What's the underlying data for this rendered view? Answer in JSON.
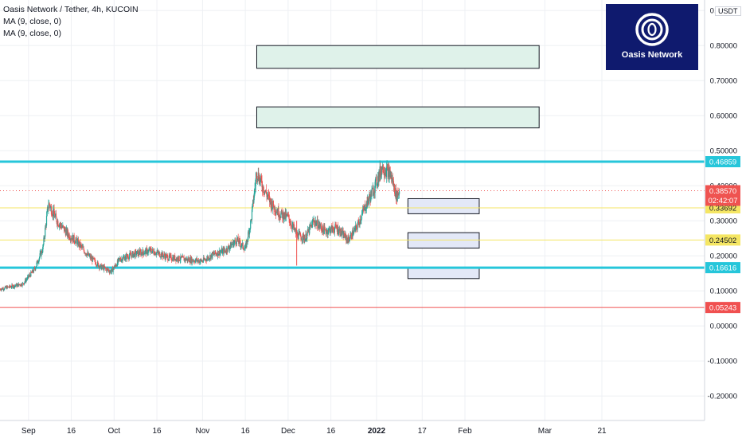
{
  "legend": {
    "title": "Oasis Network / Tether, 4h, KUCOIN",
    "ma1": "MA (9, close, 0)",
    "ma2": "MA (9, close, 0)"
  },
  "logo": {
    "text": "Oasis Network"
  },
  "currency": "USDT",
  "colors": {
    "up": "#26a69a",
    "down": "#ef5350",
    "support_blue": "#26c6da",
    "yellow_level": "#f5e663",
    "red_level": "#f05050",
    "target_box": "#dff2ea",
    "entry_box": "#e3e8f7",
    "logo_bg": "#0f1a6e"
  },
  "chart_data": {
    "type": "candlestick",
    "symbol": "Oasis Network / Tether",
    "interval": "4h",
    "exchange": "KUCOIN",
    "ylim": [
      -0.27,
      0.93
    ],
    "y_ticks": [
      "0.90000",
      "0.80000",
      "0.70000",
      "0.60000",
      "0.50000",
      "0.40000",
      "0.30000",
      "0.20000",
      "0.10000",
      "0.00000",
      "-0.10000",
      "-0.20000"
    ],
    "y_tick_values": [
      0.9,
      0.8,
      0.7,
      0.6,
      0.5,
      0.4,
      0.3,
      0.2,
      0.1,
      0.0,
      -0.1,
      -0.2
    ],
    "x_ticks": [
      "Sep",
      "16",
      "Oct",
      "16",
      "Nov",
      "16",
      "Dec",
      "16",
      "2022",
      "17",
      "Feb",
      "Mar",
      "21"
    ],
    "x_tick_dates": [
      "2021-09-01",
      "2021-09-16",
      "2021-10-01",
      "2021-10-16",
      "2021-11-01",
      "2021-11-16",
      "2021-12-01",
      "2021-12-16",
      "2022-01-01",
      "2022-01-17",
      "2022-02-01",
      "2022-03-01",
      "2022-03-21"
    ],
    "xlim": [
      "2021-08-22",
      "2022-04-26"
    ],
    "price_path": [
      [
        "2021-08-22",
        0.105
      ],
      [
        "2021-08-30",
        0.12
      ],
      [
        "2021-09-03",
        0.16
      ],
      [
        "2021-09-06",
        0.22
      ],
      [
        "2021-09-08",
        0.35
      ],
      [
        "2021-09-11",
        0.3
      ],
      [
        "2021-09-15",
        0.26
      ],
      [
        "2021-09-18",
        0.24
      ],
      [
        "2021-09-22",
        0.2
      ],
      [
        "2021-09-26",
        0.17
      ],
      [
        "2021-09-30",
        0.155
      ],
      [
        "2021-10-03",
        0.19
      ],
      [
        "2021-10-08",
        0.205
      ],
      [
        "2021-10-14",
        0.215
      ],
      [
        "2021-10-20",
        0.195
      ],
      [
        "2021-10-26",
        0.19
      ],
      [
        "2021-11-01",
        0.185
      ],
      [
        "2021-11-05",
        0.205
      ],
      [
        "2021-11-09",
        0.215
      ],
      [
        "2021-11-13",
        0.245
      ],
      [
        "2021-11-16",
        0.22
      ],
      [
        "2021-11-18",
        0.3
      ],
      [
        "2021-11-20",
        0.44
      ],
      [
        "2021-11-22",
        0.4
      ],
      [
        "2021-11-25",
        0.35
      ],
      [
        "2021-11-28",
        0.32
      ],
      [
        "2021-12-01",
        0.31
      ],
      [
        "2021-12-04",
        0.26
      ],
      [
        "2021-12-07",
        0.25
      ],
      [
        "2021-12-10",
        0.3
      ],
      [
        "2021-12-14",
        0.27
      ],
      [
        "2021-12-18",
        0.28
      ],
      [
        "2021-12-22",
        0.245
      ],
      [
        "2021-12-25",
        0.28
      ],
      [
        "2021-12-28",
        0.34
      ],
      [
        "2021-12-31",
        0.39
      ],
      [
        "2022-01-03",
        0.455
      ],
      [
        "2022-01-06",
        0.43
      ],
      [
        "2022-01-08",
        0.37
      ],
      [
        "2022-01-09",
        0.3857
      ]
    ],
    "last_price": "0.38570",
    "countdown": "02:42:07",
    "levels": [
      {
        "label": "0.46859",
        "value": 0.46859,
        "color": "#26c6da",
        "style": "thick"
      },
      {
        "label": "0.33692",
        "value": 0.33692,
        "color": "#f5e663",
        "style": "thin"
      },
      {
        "label": "0.24502",
        "value": 0.24502,
        "color": "#f5e663",
        "style": "thin"
      },
      {
        "label": "0.16616",
        "value": 0.16616,
        "color": "#26c6da",
        "style": "thick"
      },
      {
        "label": "0.05243",
        "value": 0.05243,
        "color": "#f05050",
        "style": "thin"
      }
    ],
    "boxes": [
      {
        "kind": "target",
        "from": "2021-11-20",
        "to": "2022-02-27",
        "top": 0.8,
        "bottom": 0.735
      },
      {
        "kind": "target",
        "from": "2021-11-20",
        "to": "2022-02-27",
        "top": 0.625,
        "bottom": 0.565
      },
      {
        "kind": "entry",
        "from": "2022-01-12",
        "to": "2022-02-06",
        "top": 0.363,
        "bottom": 0.32
      },
      {
        "kind": "entry",
        "from": "2022-01-12",
        "to": "2022-02-06",
        "top": 0.266,
        "bottom": 0.222
      },
      {
        "kind": "entry",
        "from": "2022-01-12",
        "to": "2022-02-06",
        "top": 0.166,
        "bottom": 0.135
      }
    ]
  }
}
